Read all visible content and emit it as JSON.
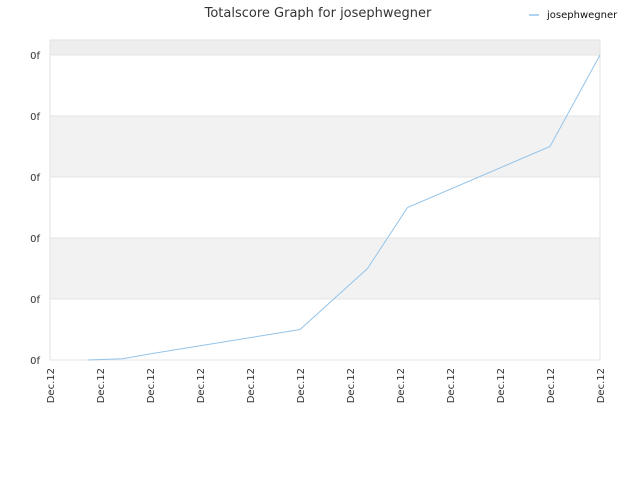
{
  "chart_data": {
    "type": "line",
    "title": "Totalscore Graph for josephwegner",
    "xlabel": "",
    "ylabel": "",
    "x_ticks": [
      "Dec.12",
      "Dec.12",
      "Dec.12",
      "Dec.12",
      "Dec.12",
      "Dec.12",
      "Dec.12",
      "Dec.12",
      "Dec.12",
      "Dec.12",
      "Dec.12",
      "Dec.12"
    ],
    "y_ticks": [
      "0f",
      "0f",
      "0f",
      "0f",
      "0f",
      "0f"
    ],
    "ylim": [
      0,
      5
    ],
    "xlim": [
      0,
      11
    ],
    "grid": true,
    "legend_position": "top-right",
    "series": [
      {
        "name": "josephwegner",
        "color": "#94c4ea",
        "points": [
          {
            "x": 0.75,
            "y": 0.0
          },
          {
            "x": 1.45,
            "y": 0.02
          },
          {
            "x": 2.0,
            "y": 0.1
          },
          {
            "x": 5.0,
            "y": 0.5
          },
          {
            "x": 6.35,
            "y": 1.5
          },
          {
            "x": 7.15,
            "y": 2.5
          },
          {
            "x": 10.0,
            "y": 3.5
          },
          {
            "x": 11.0,
            "y": 5.0
          }
        ]
      }
    ]
  }
}
